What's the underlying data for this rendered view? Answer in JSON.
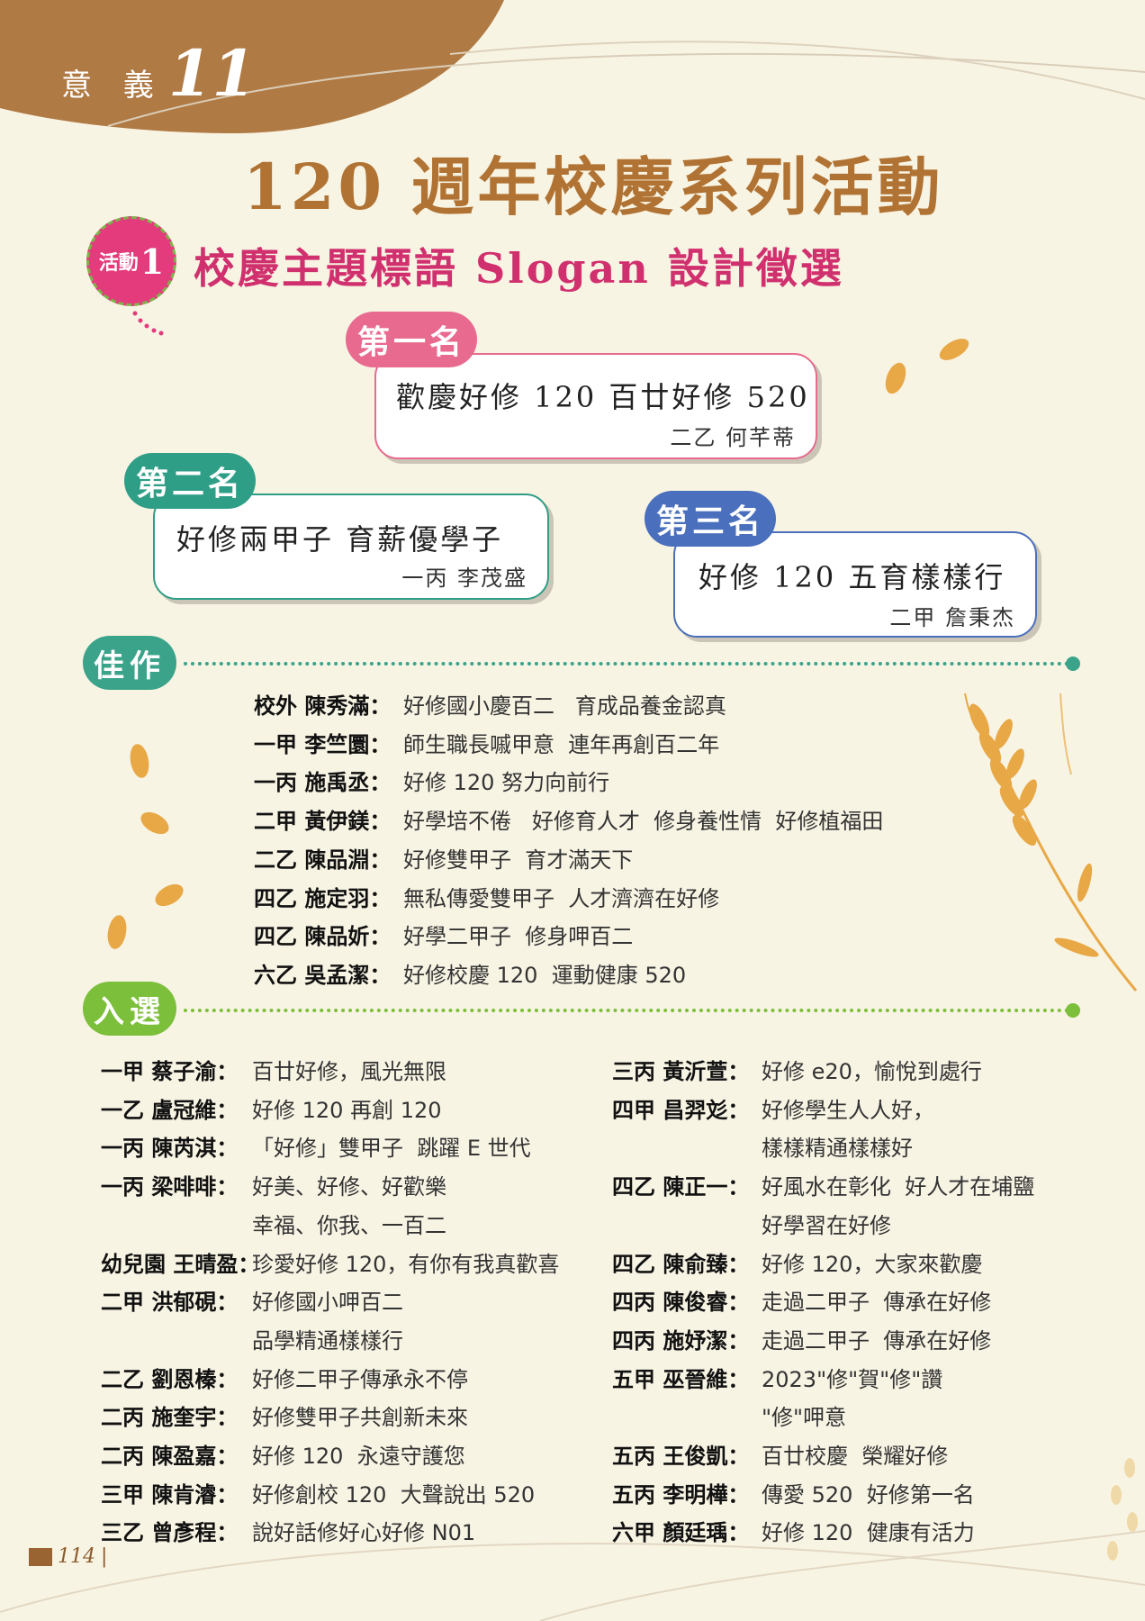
{
  "header": {
    "meaning_word": "意 義",
    "meaning_number": "11"
  },
  "main_title": "120 週年校慶系列活動",
  "activity": {
    "badge_label": "活動",
    "badge_number": "1",
    "title": "校慶主題標語 Slogan 設計徵選"
  },
  "prizes": [
    {
      "rank": "第一名",
      "slogan": "歡慶好修 120 百廿好修 520",
      "author": "二乙  何芊蒂"
    },
    {
      "rank": "第二名",
      "slogan": "好修兩甲子 育薪優學子",
      "author": "一丙  李茂盛"
    },
    {
      "rank": "第三名",
      "slogan": "好修 120 五育樣樣行",
      "author": "二甲  詹秉杰"
    }
  ],
  "honorable": {
    "label": "佳作",
    "entries": [
      {
        "who": "校外 陳秀滿：",
        "text": "好修國小慶百二   育成品養金認真"
      },
      {
        "who": "一甲 李竺圜：",
        "text": "師生職長嘁甲意  連年再創百二年"
      },
      {
        "who": "一丙 施禹丞：",
        "text": "好修 120 努力向前行"
      },
      {
        "who": "二甲 黃伊鎂：",
        "text": "好學培不倦   好修育人才  修身養性情  好修植福田"
      },
      {
        "who": "二乙 陳品淵：",
        "text": "好修雙甲子  育才滿天下"
      },
      {
        "who": "四乙 施定羽：",
        "text": "無私傳愛雙甲子  人才濟濟在好修"
      },
      {
        "who": "四乙 陳品妡：",
        "text": "好學二甲子  修身呷百二"
      },
      {
        "who": "六乙 吳孟潔：",
        "text": "好修校慶 120  運動健康 520"
      }
    ]
  },
  "selected": {
    "label": "入選",
    "left": [
      {
        "who": "一甲 蔡子渝：",
        "text": "百廿好修，風光無限"
      },
      {
        "who": "一乙 盧冠維：",
        "text": "好修 120 再創 120"
      },
      {
        "who": "一丙 陳芮淇：",
        "text": "「好修」雙甲子  跳躍 E 世代"
      },
      {
        "who": "一丙 梁啡啡：",
        "text": "好美、好修、好歡樂"
      },
      {
        "who": "",
        "text": "幸福、你我、一百二"
      },
      {
        "who": "幼兒園 王晴盈：",
        "text": "珍愛好修 120，有你有我真歡喜"
      },
      {
        "who": "二甲 洪郁硯：",
        "text": "好修國小呷百二"
      },
      {
        "who": "",
        "text": "品學精通樣樣行"
      },
      {
        "who": "二乙 劉恩榛：",
        "text": "好修二甲子傳承永不停"
      },
      {
        "who": "二丙 施奎宇：",
        "text": "好修雙甲子共創新未來"
      },
      {
        "who": "二丙 陳盈嘉：",
        "text": "好修 120  永遠守護您"
      },
      {
        "who": "三甲 陳肯濬：",
        "text": "好修創校 120  大聲說出 520"
      },
      {
        "who": "三乙 曾彥程：",
        "text": "說好話修好心好修 N01"
      }
    ],
    "right": [
      {
        "who": "三丙 黃沂萱：",
        "text": "好修 e20，愉悅到處行"
      },
      {
        "who": "四甲 昌羿彣：",
        "text": "好修學生人人好，"
      },
      {
        "who": "",
        "text": "樣樣精通樣樣好"
      },
      {
        "who": "四乙 陳正一：",
        "text": "好風水在彰化  好人才在埔鹽"
      },
      {
        "who": "",
        "text": "好學習在好修"
      },
      {
        "who": "四乙 陳俞臻：",
        "text": "好修 120，大家來歡慶"
      },
      {
        "who": "四丙 陳俊睿：",
        "text": "走過二甲子  傳承在好修"
      },
      {
        "who": "四丙 施妤潔：",
        "text": "走過二甲子  傳承在好修"
      },
      {
        "who": "五甲 巫晉維：",
        "text": "2023\"修\"賀\"修\"讚"
      },
      {
        "who": "",
        "text": "\"修\"呷意"
      },
      {
        "who": "五丙 王俊凱：",
        "text": "百廿校慶  榮耀好修"
      },
      {
        "who": "五丙 李明樺：",
        "text": "傳愛 520  好修第一名"
      },
      {
        "who": "六甲 顏廷瑀：",
        "text": "好修 120  健康有活力"
      }
    ]
  },
  "page_number": "114",
  "colors": {
    "background": "#f8f4e4",
    "header_brown": "#b07a44",
    "title_brown": "#b07333",
    "pink": "#e33b7c",
    "rank1": "#e86a8f",
    "rank2": "#2f9e86",
    "rank3": "#4a6fbd",
    "green": "#3aa38a",
    "lime": "#7cbf3a",
    "leaf": "#e8a846"
  }
}
